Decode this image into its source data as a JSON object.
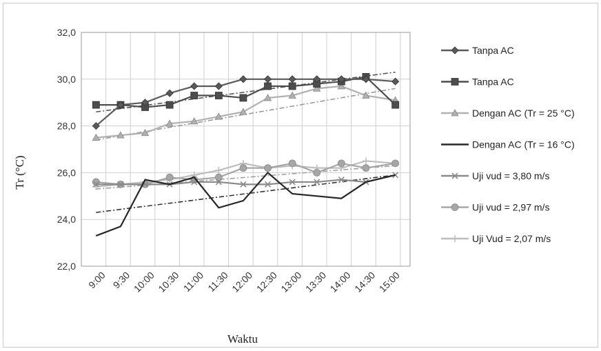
{
  "chart_data": {
    "type": "line",
    "xlabel": "Waktu",
    "ylabel": "Tr (°C)",
    "ylim": [
      22.0,
      32.0
    ],
    "y_ticks": [
      "22,0",
      "24,0",
      "26,0",
      "28,0",
      "30,0",
      "32,0"
    ],
    "y_tick_values": [
      22,
      24,
      26,
      28,
      30,
      32
    ],
    "categories": [
      "9:00",
      "9:30",
      "10:00",
      "10:30",
      "11:00",
      "11:30",
      "12:00",
      "12:30",
      "13:00",
      "13:30",
      "14:00",
      "14:30",
      "15:00"
    ],
    "x": [
      9.0,
      9.5,
      10.0,
      10.5,
      11.0,
      11.5,
      12.0,
      12.5,
      13.0,
      13.5,
      14.0,
      14.5,
      15.0
    ],
    "grid": true,
    "legend_position": "right",
    "series": [
      {
        "name": "Tanpa AC",
        "marker": "diamond",
        "color": "#5a5a5a",
        "x": [
          8.8,
          9.3,
          9.8,
          10.3,
          10.8,
          11.3,
          11.8,
          12.3,
          12.8,
          13.3,
          13.8,
          14.3,
          14.9
        ],
        "values": [
          28.0,
          28.9,
          29.0,
          29.4,
          29.7,
          29.7,
          30.0,
          30.0,
          30.0,
          30.0,
          30.0,
          30.0,
          29.9
        ]
      },
      {
        "name": "Tanpa AC",
        "marker": "square",
        "color": "#4d4d4d",
        "x": [
          8.8,
          9.3,
          9.8,
          10.3,
          10.8,
          11.3,
          11.8,
          12.3,
          12.8,
          13.3,
          13.8,
          14.3,
          14.9
        ],
        "values": [
          28.9,
          28.9,
          28.8,
          28.9,
          29.3,
          29.3,
          29.2,
          29.7,
          29.7,
          29.8,
          29.9,
          30.1,
          28.9
        ]
      },
      {
        "name": "Dengan AC (Tr = 25 °C)",
        "marker": "triangle",
        "color": "#b0b0b0",
        "x": [
          8.8,
          9.3,
          9.8,
          10.3,
          10.8,
          11.3,
          11.8,
          12.3,
          12.8,
          13.3,
          13.8,
          14.3,
          14.9
        ],
        "values": [
          27.5,
          27.6,
          27.7,
          28.1,
          28.2,
          28.4,
          28.6,
          29.2,
          29.3,
          29.6,
          29.7,
          29.3,
          29.1
        ]
      },
      {
        "name": "Dengan AC (Tr = 16 °C)",
        "marker": "none",
        "color": "#262626",
        "x": [
          8.8,
          9.3,
          9.8,
          10.3,
          10.8,
          11.3,
          11.8,
          12.3,
          12.8,
          13.3,
          13.8,
          14.3,
          14.9
        ],
        "values": [
          23.3,
          23.7,
          25.7,
          25.5,
          25.8,
          24.5,
          24.8,
          26.0,
          25.1,
          25.0,
          24.9,
          25.6,
          25.9
        ]
      },
      {
        "name": "Uji vud = 3,80 m/s",
        "marker": "x",
        "color": "#8a8a8a",
        "x": [
          8.8,
          9.3,
          9.8,
          10.3,
          10.8,
          11.3,
          11.8,
          12.3,
          12.8,
          13.3,
          13.8,
          14.3,
          14.9
        ],
        "values": [
          25.5,
          25.5,
          25.5,
          25.5,
          25.6,
          25.6,
          25.5,
          25.5,
          25.6,
          25.6,
          25.7,
          25.6,
          25.9
        ]
      },
      {
        "name": "Uji vud = 2,97 m/s",
        "marker": "circle",
        "color": "#a6a6a6",
        "x": [
          8.8,
          9.3,
          9.8,
          10.3,
          10.8,
          11.3,
          11.8,
          12.3,
          12.8,
          13.3,
          13.8,
          14.3,
          14.9
        ],
        "values": [
          25.6,
          25.5,
          25.5,
          25.8,
          25.7,
          25.8,
          26.2,
          26.2,
          26.4,
          26.0,
          26.4,
          26.2,
          26.4
        ]
      },
      {
        "name": "Uji Vud = 2,07 m/s",
        "marker": "plus",
        "color": "#bdbdbd",
        "x": [
          8.8,
          9.3,
          9.8,
          10.3,
          10.8,
          11.3,
          11.8,
          12.3,
          12.8,
          13.3,
          13.8,
          14.3,
          14.9
        ],
        "values": [
          25.4,
          25.5,
          25.6,
          25.7,
          25.9,
          26.1,
          26.4,
          26.2,
          26.3,
          26.2,
          26.2,
          26.5,
          26.4
        ]
      }
    ],
    "trendlines": [
      {
        "color": "#555555",
        "x": [
          8.8,
          14.9
        ],
        "values": [
          28.6,
          30.3
        ]
      },
      {
        "color": "#999999",
        "x": [
          8.8,
          14.9
        ],
        "values": [
          27.4,
          29.6
        ]
      },
      {
        "color": "#333333",
        "x": [
          8.8,
          14.9
        ],
        "values": [
          24.3,
          25.9
        ]
      },
      {
        "color": "#a0a0a0",
        "x": [
          8.8,
          14.9
        ],
        "values": [
          25.3,
          26.3
        ]
      }
    ]
  }
}
